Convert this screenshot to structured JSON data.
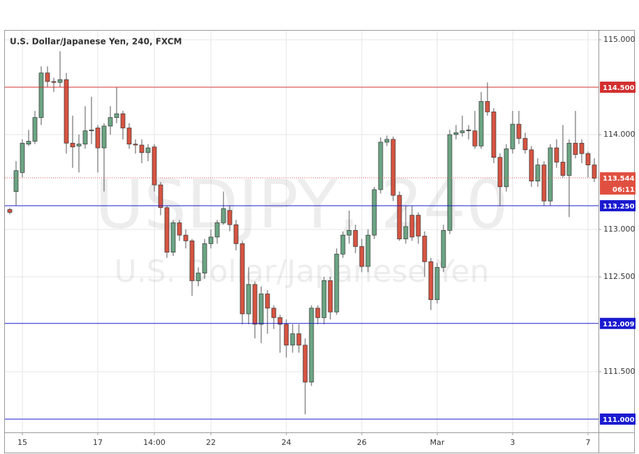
{
  "chart_data": {
    "type": "candlestick",
    "title": "U.S. Dollar/Japanese Yen, 240, FXCM",
    "watermark": [
      "USDJPY, 240",
      "U.S. Dollar/Japanese Yen"
    ],
    "categories": [
      null,
      null,
      "15",
      null,
      null,
      null,
      null,
      null,
      null,
      null,
      null,
      null,
      null,
      null,
      "17",
      null,
      null,
      null,
      null,
      null,
      null,
      null,
      null,
      "14:00",
      null,
      null,
      null,
      null,
      null,
      null,
      null,
      null,
      "22",
      null,
      null,
      null,
      null,
      null,
      null,
      null,
      null,
      null,
      null,
      null,
      "24",
      null,
      null,
      null,
      null,
      null,
      null,
      null,
      null,
      null,
      null,
      null,
      "26",
      null,
      null,
      null,
      null,
      null,
      null,
      null,
      null,
      null,
      null,
      null,
      "Mar",
      null,
      null,
      null,
      null,
      null,
      null,
      null,
      null,
      null,
      null,
      null,
      "3",
      null,
      null,
      null,
      null,
      null,
      null,
      null,
      null,
      null,
      null,
      null,
      "7",
      null
    ],
    "series": [
      {
        "up_color": "#6ba583",
        "down_color": "#d75442",
        "open": [
          113.21,
          113.4,
          113.6,
          113.9,
          113.93,
          114.18,
          114.65,
          114.56,
          114.55,
          114.58,
          113.91,
          113.88,
          113.9,
          114.04,
          114.07,
          113.86,
          114.09,
          114.18,
          114.22,
          114.07,
          113.9,
          113.89,
          113.81,
          113.87,
          113.47,
          113.23,
          112.76,
          113.07,
          112.94,
          112.88,
          112.46,
          112.54,
          112.85,
          112.92,
          113.07,
          113.2,
          113.05,
          112.85,
          112.11,
          112.42,
          112.0,
          112.32,
          112.17,
          112.07,
          112.0,
          111.78,
          111.9,
          111.78,
          111.39,
          112.17,
          112.07,
          112.46,
          112.13,
          112.74,
          112.94,
          112.99,
          112.82,
          112.61,
          112.94,
          113.42,
          113.92,
          113.95,
          113.36,
          112.9,
          113.15,
          113.15,
          112.93,
          112.66,
          112.26,
          112.6,
          112.99,
          114.0,
          114.02,
          114.04,
          114.04,
          113.88,
          114.35,
          114.24,
          113.76,
          113.45,
          113.85,
          114.11,
          113.96,
          113.84,
          113.51,
          113.68,
          113.3,
          113.86,
          113.71,
          113.57,
          113.91,
          113.91,
          113.8,
          113.68
        ],
        "high": [
          113.23,
          113.72,
          113.95,
          114.05,
          114.25,
          114.72,
          114.72,
          114.6,
          114.88,
          114.65,
          114.2,
          114.0,
          114.3,
          114.4,
          114.1,
          114.12,
          114.3,
          114.5,
          114.25,
          114.12,
          113.95,
          113.95,
          113.9,
          113.9,
          113.5,
          113.25,
          113.1,
          113.1,
          113.0,
          112.9,
          112.6,
          112.9,
          113.0,
          113.1,
          113.4,
          113.25,
          113.1,
          112.88,
          112.6,
          112.45,
          112.4,
          112.36,
          112.2,
          112.1,
          112.05,
          112.0,
          112.0,
          111.85,
          112.2,
          112.2,
          112.5,
          112.5,
          112.8,
          112.98,
          113.2,
          113.05,
          112.9,
          113.0,
          113.45,
          113.97,
          113.99,
          113.98,
          113.4,
          113.25,
          113.25,
          113.18,
          112.98,
          112.7,
          112.65,
          113.05,
          114.05,
          114.1,
          114.2,
          114.1,
          114.25,
          114.45,
          114.55,
          114.28,
          113.8,
          113.9,
          114.25,
          114.25,
          114.02,
          113.88,
          113.75,
          113.72,
          113.9,
          113.95,
          114.1,
          113.95,
          114.25,
          113.95,
          113.82,
          113.75
        ],
        "low": [
          113.16,
          113.25,
          113.55,
          113.88,
          113.9,
          114.1,
          114.5,
          114.45,
          114.5,
          113.8,
          113.65,
          113.6,
          113.85,
          113.9,
          113.6,
          113.4,
          114.0,
          114.12,
          113.95,
          113.85,
          113.8,
          113.7,
          113.72,
          113.4,
          113.15,
          112.7,
          112.72,
          112.88,
          112.8,
          112.3,
          112.4,
          112.48,
          112.8,
          112.85,
          113.05,
          112.98,
          112.78,
          112.0,
          112.0,
          111.85,
          111.8,
          111.9,
          111.95,
          111.7,
          111.65,
          111.7,
          111.7,
          111.05,
          111.35,
          112.0,
          112.0,
          112.05,
          112.1,
          112.7,
          112.85,
          112.75,
          112.55,
          112.55,
          112.9,
          113.38,
          113.88,
          113.3,
          112.88,
          112.85,
          112.88,
          112.85,
          112.5,
          112.15,
          112.22,
          112.55,
          112.95,
          113.95,
          113.98,
          113.95,
          113.85,
          113.85,
          114.2,
          113.7,
          113.25,
          113.4,
          113.8,
          113.9,
          113.8,
          113.45,
          113.45,
          113.25,
          113.25,
          113.65,
          113.55,
          113.13,
          113.75,
          113.7,
          113.55,
          113.5
        ],
        "close": [
          113.18,
          113.62,
          113.91,
          113.93,
          114.18,
          114.65,
          114.56,
          114.55,
          114.58,
          113.91,
          113.87,
          113.9,
          114.04,
          114.05,
          113.86,
          114.09,
          114.18,
          114.22,
          114.07,
          113.9,
          113.89,
          113.81,
          113.86,
          113.47,
          113.23,
          112.76,
          113.07,
          112.94,
          112.88,
          112.46,
          112.54,
          112.85,
          112.92,
          113.07,
          113.22,
          113.05,
          112.85,
          112.11,
          112.42,
          112.0,
          112.32,
          112.17,
          112.07,
          112.0,
          111.78,
          111.9,
          111.78,
          111.39,
          112.17,
          112.07,
          112.46,
          112.13,
          112.74,
          112.94,
          112.99,
          112.82,
          112.61,
          112.94,
          113.42,
          113.92,
          113.95,
          113.36,
          112.9,
          113.03,
          112.92,
          112.93,
          112.66,
          112.26,
          112.6,
          112.99,
          114.0,
          114.02,
          114.04,
          114.05,
          113.88,
          114.35,
          114.24,
          113.76,
          113.45,
          113.85,
          114.11,
          113.96,
          113.84,
          113.51,
          113.68,
          113.3,
          113.86,
          113.71,
          113.57,
          113.91,
          113.79,
          113.8,
          113.68,
          113.54
        ]
      }
    ],
    "ylim": [
      110.86,
      115.096
    ],
    "yticks": [
      {
        "value": 111.5,
        "label": "111.500"
      },
      {
        "value": 112.5,
        "label": "112.500"
      },
      {
        "value": 113,
        "label": "113.000"
      },
      {
        "value": 114,
        "label": "114.000"
      },
      {
        "value": 115,
        "label": "115.000"
      }
    ],
    "grid": true,
    "levels": [
      {
        "value": 114.5,
        "label": "114.500",
        "color": "#d32f2f"
      },
      {
        "value": 113.25,
        "label": "113.250",
        "color": "#1a1ad0"
      },
      {
        "value": 112.009,
        "label": "112.009",
        "color": "#1a1ad0"
      },
      {
        "value": 111,
        "label": "111.000",
        "color": "#1a1ad0"
      }
    ],
    "last_price": {
      "value": 113.544,
      "label": "113.544",
      "color": "#e05040"
    },
    "countdown": "06:11"
  }
}
